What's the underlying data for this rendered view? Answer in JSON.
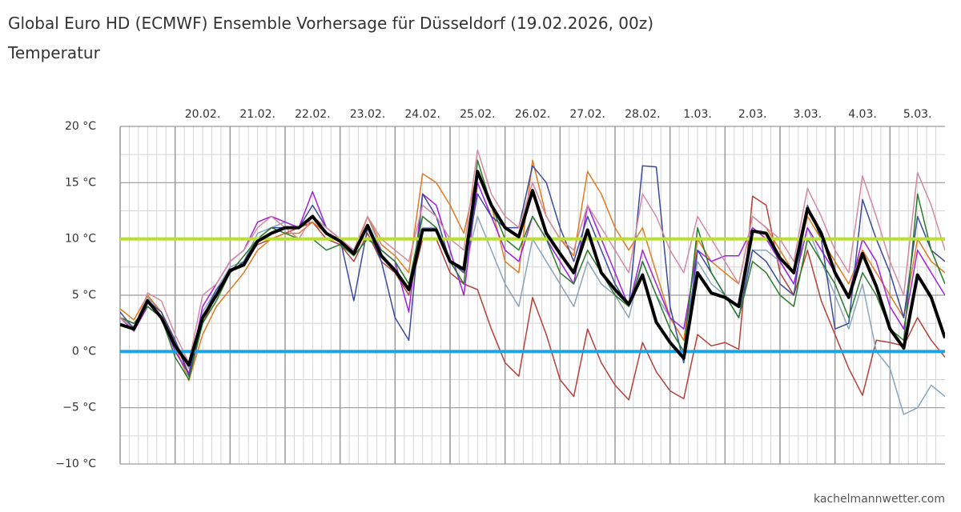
{
  "chart_data": {
    "type": "line",
    "title": "Global Euro HD (ECMWF) Ensemble Vorhersage für Düsseldorf (19.02.2026, 00z)",
    "subtitle": "Temperatur",
    "source": "kachelmannwetter.com",
    "x": [
      0,
      6,
      12,
      18,
      24,
      30,
      36,
      42,
      48,
      54,
      60,
      66,
      72,
      78,
      84,
      90,
      96,
      102,
      108,
      114,
      120,
      126,
      132,
      138,
      144,
      150,
      156,
      162,
      168,
      174,
      180,
      186,
      192,
      198,
      204,
      210,
      216,
      222,
      228,
      234,
      240,
      246,
      252,
      258,
      264,
      270,
      276,
      282,
      288,
      294,
      300,
      306,
      312,
      318,
      324,
      330,
      336,
      342,
      348,
      354,
      360
    ],
    "xlim": [
      0,
      360
    ],
    "xticks": [
      {
        "value": 36,
        "label": "20.02."
      },
      {
        "value": 60,
        "label": "21.02."
      },
      {
        "value": 84,
        "label": "22.02."
      },
      {
        "value": 108,
        "label": "23.02."
      },
      {
        "value": 132,
        "label": "24.02."
      },
      {
        "value": 156,
        "label": "25.02."
      },
      {
        "value": 180,
        "label": "26.02."
      },
      {
        "value": 204,
        "label": "27.02."
      },
      {
        "value": 228,
        "label": "28.02."
      },
      {
        "value": 252,
        "label": "1.03."
      },
      {
        "value": 276,
        "label": "2.03."
      },
      {
        "value": 300,
        "label": "3.03."
      },
      {
        "value": 324,
        "label": "4.03."
      },
      {
        "value": 348,
        "label": "5.03."
      }
    ],
    "ylim": [
      -10,
      20
    ],
    "yticks": [
      {
        "value": 20,
        "label": "20 °C"
      },
      {
        "value": 15,
        "label": "15 °C"
      },
      {
        "value": 10,
        "label": "10 °C"
      },
      {
        "value": 5,
        "label": "5 °C"
      },
      {
        "value": 0,
        "label": "0 °C"
      },
      {
        "value": -5,
        "label": "−5 °C"
      },
      {
        "value": -10,
        "label": "−10 °C"
      }
    ],
    "grid": true,
    "reference_lines": [
      {
        "value": 10,
        "color": "#b8e02c"
      },
      {
        "value": 0,
        "color": "#1ba3e2"
      }
    ],
    "series": [
      {
        "color": "#b5403a",
        "width": 1.5,
        "values": [
          3,
          2.5,
          4,
          3,
          1,
          -2,
          2.5,
          5,
          7,
          8,
          9.5,
          10,
          10.5,
          11,
          11.5,
          10,
          9.5,
          8,
          10.5,
          8,
          7,
          5,
          10,
          10,
          7,
          6,
          5.5,
          2,
          -1,
          -2.2,
          4.8,
          1.5,
          -2.5,
          -4,
          2,
          -1,
          -3,
          -4.3,
          0.8,
          -1.8,
          -3.5,
          -4.2,
          1.5,
          0.5,
          0.8,
          0.2,
          13.8,
          13,
          7,
          5,
          9,
          4.5,
          1.5,
          -1.5,
          -3.9,
          1,
          0.8,
          0.5,
          3,
          1,
          -0.5
        ]
      },
      {
        "color": "#8aa4bc",
        "width": 1.5,
        "values": [
          3,
          2.2,
          4.8,
          3.5,
          1,
          -1.5,
          3.5,
          5.5,
          7.5,
          8,
          10.5,
          11,
          11.5,
          11,
          12,
          11,
          10,
          9,
          12,
          9,
          8,
          6,
          11,
          11,
          8,
          7,
          12,
          9,
          6,
          4,
          10,
          8,
          6,
          4,
          8,
          6,
          5,
          3,
          8,
          5,
          3,
          1,
          8,
          6,
          5,
          4,
          9,
          9,
          8,
          6,
          11,
          8,
          5,
          2,
          6,
          0,
          -1.5,
          -5.6,
          -5,
          -3,
          -4
        ]
      },
      {
        "color": "#e07b20",
        "width": 1.5,
        "values": [
          3.8,
          2.8,
          5,
          3.5,
          0.5,
          -2.6,
          1.5,
          4,
          5.5,
          7,
          9,
          10,
          10.5,
          10.5,
          11.5,
          10.5,
          10,
          8.5,
          12,
          9.5,
          8.5,
          7,
          15.8,
          15,
          13,
          10.5,
          16,
          13,
          8,
          7,
          17,
          12,
          10,
          8.5,
          16,
          14,
          11,
          9,
          11,
          7,
          3,
          1,
          10,
          8,
          7,
          6,
          12,
          11,
          9,
          7,
          12,
          10,
          8,
          6,
          9,
          7,
          5,
          3,
          10,
          8,
          7
        ]
      },
      {
        "color": "#a020e0",
        "width": 1.5,
        "values": [
          3,
          1.8,
          4,
          3,
          0,
          -2,
          4,
          6,
          8,
          9,
          11.5,
          12,
          11.5,
          11,
          14.2,
          11,
          10,
          9,
          11,
          9,
          8,
          3.5,
          14,
          13,
          9,
          5,
          15,
          12,
          9,
          8,
          12,
          10,
          8,
          6,
          13,
          10,
          7,
          4,
          9,
          6,
          3,
          2,
          9,
          8,
          8.5,
          8.5,
          11,
          10,
          8,
          6,
          11,
          9,
          7,
          5,
          10,
          8,
          4,
          2,
          9,
          7,
          5
        ]
      },
      {
        "color": "#3b4a9a",
        "width": 1.5,
        "values": [
          3.5,
          2,
          4.5,
          3.5,
          1,
          -2.2,
          3,
          5.5,
          7,
          8,
          10,
          11,
          11,
          11,
          13,
          11,
          10,
          4.5,
          11,
          8,
          3,
          1,
          14,
          12,
          8,
          7,
          14,
          12,
          11,
          11,
          16.5,
          15,
          11,
          8,
          12,
          9,
          6,
          4,
          16.5,
          16.4,
          4,
          -1,
          9,
          7,
          5,
          3,
          9,
          8,
          6,
          5,
          13,
          10,
          2,
          2.5,
          13.5,
          10,
          7,
          3,
          12,
          9,
          8
        ]
      },
      {
        "color": "#2a7a2a",
        "width": 1.5,
        "values": [
          3,
          2.5,
          4,
          3,
          -0.5,
          -2.5,
          2.5,
          4.5,
          7,
          8.5,
          10,
          11,
          10.5,
          10,
          10,
          9,
          9.5,
          8.5,
          10,
          9,
          8,
          6,
          12,
          11,
          8,
          6,
          17,
          13,
          10,
          9,
          12,
          10,
          7,
          6,
          9,
          7,
          5,
          4,
          8,
          5,
          2,
          0,
          11,
          7,
          5,
          3,
          8,
          7,
          5,
          4,
          10,
          8,
          6,
          3,
          7,
          5,
          2,
          1,
          14,
          9,
          6
        ]
      },
      {
        "color": "#d48aa0",
        "width": 1.5,
        "values": [
          3,
          2,
          5.2,
          4.5,
          1.5,
          -1,
          5,
          6,
          8,
          9,
          11,
          12,
          11,
          10,
          12,
          11,
          10,
          9,
          12,
          10,
          9,
          8,
          13,
          12,
          10,
          9,
          17.9,
          14,
          12,
          11,
          15,
          12,
          10,
          9,
          13,
          11,
          9,
          7,
          14,
          12,
          9,
          7,
          12,
          10,
          8,
          6,
          12,
          11,
          10,
          8,
          14.5,
          12,
          9,
          7,
          15.6,
          12,
          8,
          5,
          15.9,
          13,
          9
        ]
      },
      {
        "color": "#000000",
        "width": 4,
        "values": [
          2.4,
          2.0,
          4.5,
          3.0,
          0.5,
          -1.2,
          3.0,
          5.0,
          7.2,
          7.7,
          9.8,
          10.5,
          11.0,
          11.0,
          12.0,
          10.5,
          9.8,
          8.7,
          11.2,
          8.5,
          7.2,
          5.5,
          10.8,
          10.8,
          8.0,
          7.3,
          16.0,
          13.0,
          11.0,
          10.2,
          14.3,
          10.5,
          8.7,
          7.0,
          10.8,
          7.0,
          5.5,
          4.2,
          6.8,
          2.6,
          0.8,
          -0.6,
          7.0,
          5.2,
          4.8,
          4.0,
          10.7,
          10.5,
          8.3,
          7.0,
          12.7,
          10.5,
          7.0,
          4.8,
          8.7,
          5.8,
          2.0,
          0.3,
          6.8,
          4.8,
          1.2
        ]
      }
    ]
  }
}
